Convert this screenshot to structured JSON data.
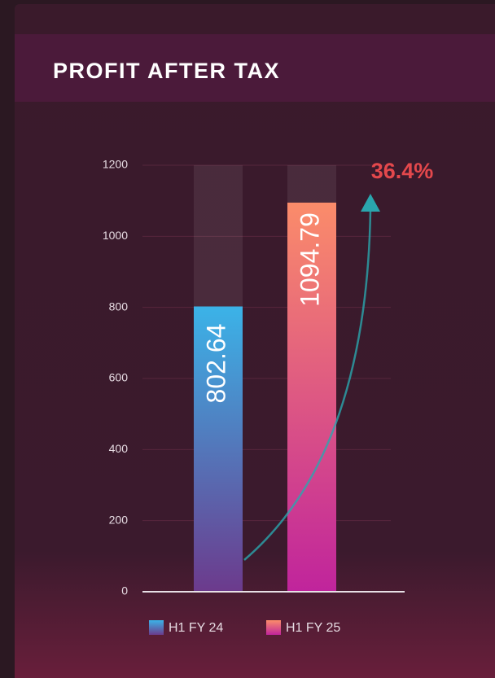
{
  "chart_data": {
    "type": "bar",
    "title": "PROFIT AFTER TAX",
    "series": [
      {
        "name": "H1 FY 24",
        "gradient": [
          "#3bb3e8",
          "#6c3a8c"
        ],
        "values": [
          802.64
        ]
      },
      {
        "name": "H1 FY 25",
        "gradient": [
          "#fb8c6a",
          "#c0249c"
        ],
        "values": [
          1094.79
        ]
      }
    ],
    "ylim": [
      0,
      1200
    ],
    "yticks": [
      0,
      200,
      400,
      600,
      800,
      1000,
      1200
    ],
    "grid": true,
    "annotation": "36.4%",
    "annotation_color": "#e4484c",
    "arrow_color": "#2aa6ae"
  }
}
